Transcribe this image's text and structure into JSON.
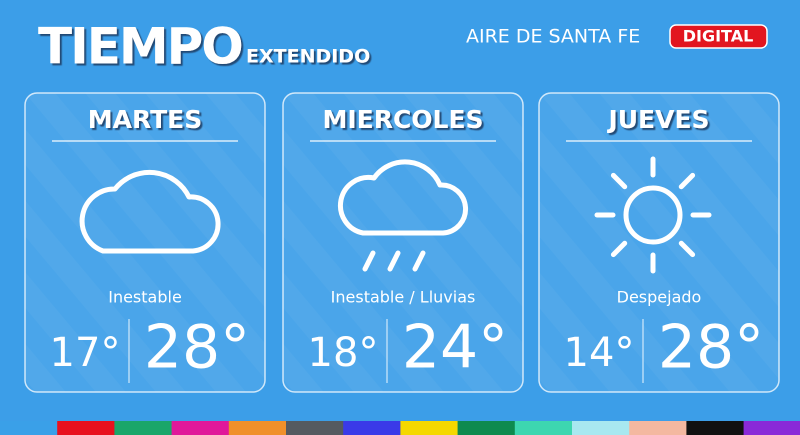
{
  "header": {
    "title": "TIEMPO",
    "subtitle": "EXTENDIDO",
    "brand": "AIRE DE SANTA FE",
    "badge": "DIGITAL"
  },
  "days": [
    {
      "name": "MARTES",
      "condition": "Inestable",
      "min": "17°",
      "max": "28°"
    },
    {
      "name": "MIERCOLES",
      "condition": "Inestable / Lluvias",
      "min": "18°",
      "max": "24°"
    },
    {
      "name": "JUEVES",
      "condition": "Despejado",
      "min": "14°",
      "max": "28°"
    }
  ]
}
